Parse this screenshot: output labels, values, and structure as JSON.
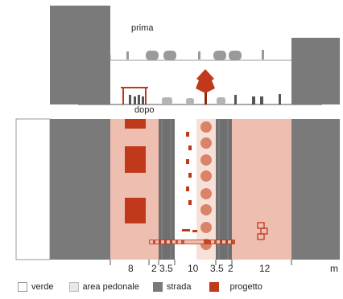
{
  "labels": {
    "before": "prima",
    "after": "dopo",
    "unit": "m"
  },
  "dimensions": [
    "8",
    "2",
    "3.5",
    "10",
    "3.5",
    "2",
    "12"
  ],
  "legend": [
    {
      "label": "verde",
      "color": "#ffffff",
      "border": "#999999"
    },
    {
      "label": "area pedonale",
      "color": "#e8e8e8",
      "border": "#bbbbbb"
    },
    {
      "label": "strada",
      "color": "#7a7a7a",
      "border": "#7a7a7a"
    },
    {
      "label": "progetto",
      "color": "#c0391b",
      "border": "#c0391b"
    }
  ],
  "colors": {
    "building": "#7a7a7a",
    "pedestrian_project": "#eebfb0",
    "project": "#c0391b",
    "road": "#6f6f6f",
    "tree": "#d87a5c",
    "green": "#ffffff"
  }
}
